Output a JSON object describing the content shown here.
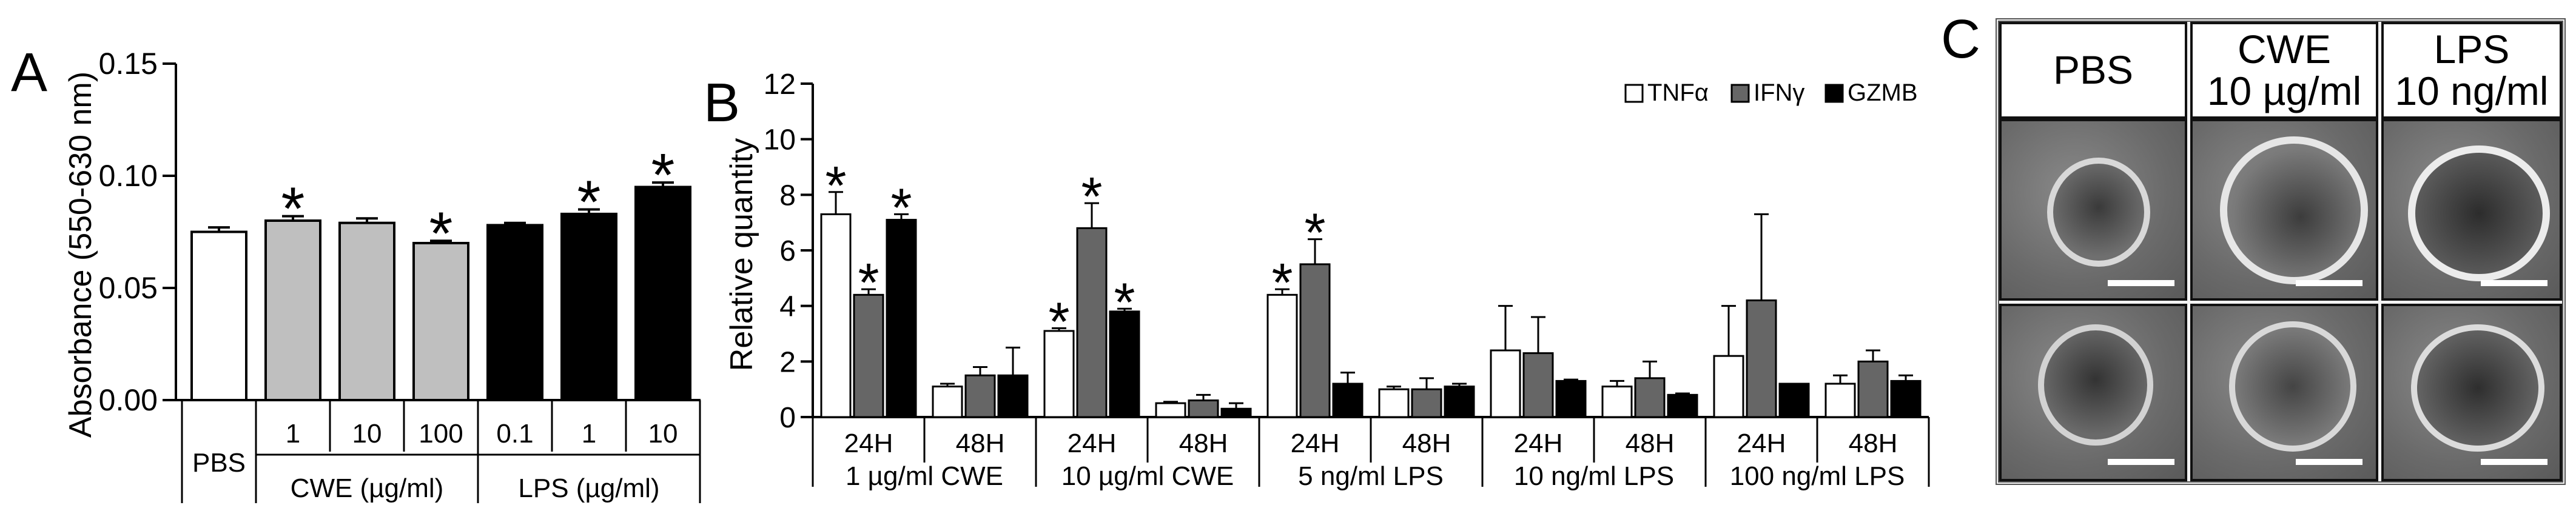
{
  "panel_letters": {
    "a": "A",
    "b": "B",
    "c": "C"
  },
  "chart_data": [
    {
      "panel": "A",
      "type": "bar",
      "ylabel": "Absorbance (550-630 nm)",
      "ylim": [
        0,
        0.15
      ],
      "yticks": [
        "0.00",
        "0.05",
        "0.10",
        "0.15"
      ],
      "yticks_values": [
        0,
        0.05,
        0.1,
        0.15
      ],
      "bars": [
        {
          "group": "PBS",
          "dose": "",
          "value": 0.075,
          "err": 0.002,
          "color": "#ffffff",
          "star": false
        },
        {
          "group": "CWE",
          "dose": "1",
          "value": 0.08,
          "err": 0.002,
          "color": "#bfbfbf",
          "star": true
        },
        {
          "group": "CWE",
          "dose": "10",
          "value": 0.079,
          "err": 0.002,
          "color": "#bfbfbf",
          "star": false
        },
        {
          "group": "CWE",
          "dose": "100",
          "value": 0.07,
          "err": 0.001,
          "color": "#bfbfbf",
          "star": true
        },
        {
          "group": "LPS",
          "dose": "0.1",
          "value": 0.078,
          "err": 0.001,
          "color": "#000000",
          "star": false
        },
        {
          "group": "LPS",
          "dose": "1",
          "value": 0.083,
          "err": 0.002,
          "color": "#000000",
          "star": true
        },
        {
          "group": "LPS",
          "dose": "10",
          "value": 0.095,
          "err": 0.002,
          "color": "#000000",
          "star": true
        }
      ],
      "group_labels": [
        "PBS",
        "CWE (µg/ml)",
        "LPS (µg/ml)"
      ],
      "star_symbol": "*"
    },
    {
      "panel": "B",
      "type": "bar",
      "ylabel": "Relative quantity",
      "ylim": [
        0,
        12
      ],
      "yticks": [
        "0",
        "2",
        "4",
        "6",
        "8",
        "10",
        "12"
      ],
      "yticks_values": [
        0,
        2,
        4,
        6,
        8,
        10,
        12
      ],
      "legend": [
        {
          "name": "TNFα",
          "color": "#ffffff"
        },
        {
          "name": "IFNγ",
          "color": "#666666"
        },
        {
          "name": "GZMB",
          "color": "#000000"
        }
      ],
      "categories": [
        {
          "time": "24H",
          "condition": "1 µg/ml CWE"
        },
        {
          "time": "48H",
          "condition": "1 µg/ml CWE"
        },
        {
          "time": "24H",
          "condition": "10 µg/ml CWE"
        },
        {
          "time": "48H",
          "condition": "10 µg/ml CWE"
        },
        {
          "time": "24H",
          "condition": "5 ng/ml LPS"
        },
        {
          "time": "48H",
          "condition": "5 ng/ml LPS"
        },
        {
          "time": "24H",
          "condition": "10 ng/ml LPS"
        },
        {
          "time": "48H",
          "condition": "10 ng/ml LPS"
        },
        {
          "time": "24H",
          "condition": "100 ng/ml LPS"
        },
        {
          "time": "48H",
          "condition": "100 ng/ml LPS"
        }
      ],
      "conditions": [
        "1 µg/ml CWE",
        "10 µg/ml CWE",
        "5 ng/ml LPS",
        "10 ng/ml LPS",
        "100 ng/ml LPS"
      ],
      "series": [
        {
          "name": "TNFα",
          "values": [
            7.3,
            1.1,
            3.1,
            0.5,
            4.4,
            1.0,
            2.4,
            1.1,
            2.2,
            1.2
          ],
          "errors": [
            0.8,
            0.1,
            0.1,
            0.05,
            0.2,
            0.1,
            1.6,
            0.2,
            1.8,
            0.3
          ],
          "stars": [
            true,
            false,
            true,
            false,
            true,
            false,
            false,
            false,
            false,
            false
          ]
        },
        {
          "name": "IFNγ",
          "values": [
            4.4,
            1.5,
            6.8,
            0.6,
            5.5,
            1.0,
            2.3,
            1.4,
            4.2,
            2.0
          ],
          "errors": [
            0.2,
            0.3,
            0.9,
            0.2,
            0.9,
            0.4,
            1.3,
            0.6,
            3.1,
            0.4
          ],
          "stars": [
            true,
            false,
            true,
            false,
            true,
            false,
            false,
            false,
            false,
            false
          ]
        },
        {
          "name": "GZMB",
          "values": [
            7.1,
            1.5,
            3.8,
            0.3,
            1.2,
            1.1,
            1.3,
            0.8,
            1.2,
            1.3
          ],
          "errors": [
            0.2,
            1.0,
            0.1,
            0.2,
            0.4,
            0.1,
            0.05,
            0.05,
            0.0,
            0.2
          ],
          "stars": [
            true,
            false,
            true,
            false,
            false,
            false,
            false,
            false,
            false,
            false
          ]
        }
      ],
      "star_symbol": "*"
    }
  ],
  "panel_c": {
    "headers": [
      {
        "line1": "PBS",
        "line2": ""
      },
      {
        "line1": "CWE",
        "line2": "10 µg/ml"
      },
      {
        "line1": "LPS",
        "line2": "10 ng/ml"
      }
    ]
  }
}
